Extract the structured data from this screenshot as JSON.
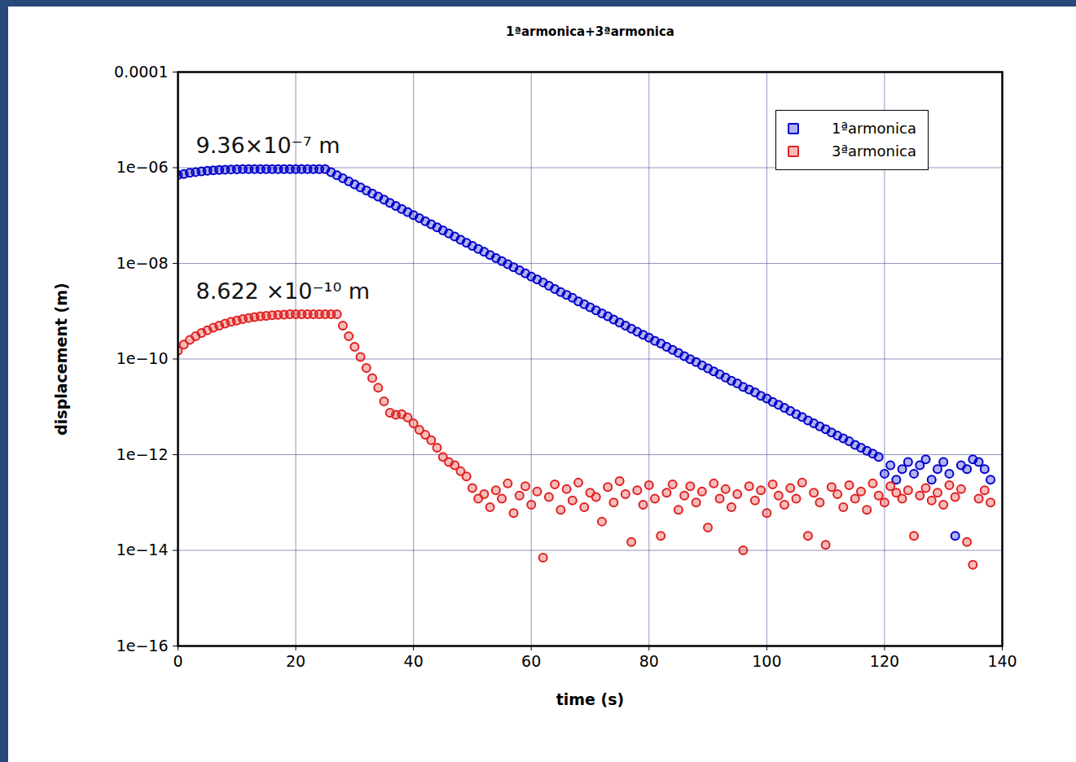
{
  "chart_data": {
    "type": "scatter",
    "title": "1ªarmonica+3ªarmonica",
    "x_label": "time (s)",
    "y_label": "displacement (m)",
    "log": "y",
    "grid": true,
    "legend": "top-right",
    "marker": "circle",
    "xlim": [
      0,
      140
    ],
    "xticks": [
      0,
      20,
      40,
      60,
      80,
      100,
      120,
      140
    ],
    "ylim": [
      1e-16,
      0.0001
    ],
    "yticks": [
      {
        "value": 0.0001,
        "label": "0.0001"
      },
      {
        "value": 1e-06,
        "label": "1e−06"
      },
      {
        "value": 1e-08,
        "label": "1e−08"
      },
      {
        "value": 1e-10,
        "label": "1e−10"
      },
      {
        "value": 1e-12,
        "label": "1e−12"
      },
      {
        "value": 1e-14,
        "label": "1e−14"
      },
      {
        "value": 1e-16,
        "label": "1e−16"
      }
    ],
    "annotations": [
      "9.36×10⁻⁷ m",
      "8.622 ×10⁻¹⁰ m"
    ],
    "x": [
      0,
      1,
      2,
      3,
      4,
      5,
      6,
      7,
      8,
      9,
      10,
      11,
      12,
      13,
      14,
      15,
      16,
      17,
      18,
      19,
      20,
      21,
      22,
      23,
      24,
      25,
      26,
      27,
      28,
      29,
      30,
      31,
      32,
      33,
      34,
      35,
      36,
      37,
      38,
      39,
      40,
      41,
      42,
      43,
      44,
      45,
      46,
      47,
      48,
      49,
      50,
      51,
      52,
      53,
      54,
      55,
      56,
      57,
      58,
      59,
      60,
      61,
      62,
      63,
      64,
      65,
      66,
      67,
      68,
      69,
      70,
      71,
      72,
      73,
      74,
      75,
      76,
      77,
      78,
      79,
      80,
      81,
      82,
      83,
      84,
      85,
      86,
      87,
      88,
      89,
      90,
      91,
      92,
      93,
      94,
      95,
      96,
      97,
      98,
      99,
      100,
      101,
      102,
      103,
      104,
      105,
      106,
      107,
      108,
      109,
      110,
      111,
      112,
      113,
      114,
      115,
      116,
      117,
      118,
      119,
      120,
      121,
      122,
      123,
      124,
      125,
      126,
      127,
      128,
      129,
      130,
      131,
      132,
      133,
      134,
      135,
      136,
      137,
      138
    ],
    "series": [
      {
        "name": "1ªarmonica",
        "color": "#0000cc",
        "values": [
          7e-07,
          7.4e-07,
          7.8e-07,
          8.1e-07,
          8.4e-07,
          8.6e-07,
          8.8e-07,
          8.95e-07,
          9.1e-07,
          9.2e-07,
          9.28e-07,
          9.36e-07,
          9.36e-07,
          9.36e-07,
          9.36e-07,
          9.36e-07,
          9.36e-07,
          9.36e-07,
          9.36e-07,
          9.36e-07,
          9.36e-07,
          9.36e-07,
          9.36e-07,
          9.36e-07,
          9.36e-07,
          9.36e-07,
          8.07e-07,
          6.97e-07,
          6.01e-07,
          5.18e-07,
          4.47e-07,
          3.86e-07,
          3.33e-07,
          2.87e-07,
          2.48e-07,
          2.14e-07,
          1.84e-07,
          1.59e-07,
          1.37e-07,
          1.18e-07,
          1.02e-07,
          8.81e-08,
          7.6e-08,
          6.56e-08,
          5.66e-08,
          4.88e-08,
          4.21e-08,
          3.63e-08,
          3.13e-08,
          2.7e-08,
          2.33e-08,
          2.01e-08,
          1.74e-08,
          1.5e-08,
          1.29e-08,
          1.11e-08,
          9.6e-09,
          8.3e-09,
          7.2e-09,
          6.2e-09,
          5.3e-09,
          4.6e-09,
          4e-09,
          3.4e-09,
          2.9e-09,
          2.5e-09,
          2.2e-09,
          1.9e-09,
          1.6e-09,
          1.4e-09,
          1.2e-09,
          1.04e-09,
          9e-10,
          7.8e-10,
          6.7e-10,
          5.8e-10,
          5e-10,
          4.3e-10,
          3.7e-10,
          3.2e-10,
          2.8e-10,
          2.4e-10,
          2.1e-10,
          1.8e-10,
          1.55e-10,
          1.34e-10,
          1.15e-10,
          9.9e-11,
          8.6e-11,
          7.4e-11,
          6.4e-11,
          5.5e-11,
          4.8e-11,
          4.1e-11,
          3.5e-11,
          3.1e-11,
          2.6e-11,
          2.3e-11,
          2e-11,
          1.7e-11,
          1.5e-11,
          1.27e-11,
          1.1e-11,
          9.5e-12,
          8.2e-12,
          7e-12,
          6.1e-12,
          5.2e-12,
          4.5e-12,
          3.9e-12,
          3.4e-12,
          2.9e-12,
          2.5e-12,
          2.2e-12,
          1.9e-12,
          1.6e-12,
          1.4e-12,
          1.2e-12,
          1.05e-12,
          9e-13,
          4e-13,
          6e-13,
          3e-13,
          5e-13,
          7e-13,
          4e-13,
          6e-13,
          8e-13,
          3e-13,
          5e-13,
          7e-13,
          4e-13,
          2e-14,
          6e-13,
          5e-13,
          8e-13,
          7e-13,
          5e-13,
          3e-13
        ]
      },
      {
        "name": "3ªarmonica",
        "color": "#e02020",
        "values": [
          1.5e-10,
          2e-10,
          2.5e-10,
          3e-10,
          3.5e-10,
          4e-10,
          4.5e-10,
          5e-10,
          5.5e-10,
          6e-10,
          6.4e-10,
          6.8e-10,
          7.2e-10,
          7.5e-10,
          7.8e-10,
          8e-10,
          8.2e-10,
          8.4e-10,
          8.5e-10,
          8.6e-10,
          8.622e-10,
          8.622e-10,
          8.622e-10,
          8.622e-10,
          8.622e-10,
          8.622e-10,
          8.622e-10,
          8.622e-10,
          5e-10,
          3e-10,
          1.8e-10,
          1.1e-10,
          6.5e-11,
          4e-11,
          2.5e-11,
          1.3e-11,
          7.5e-12,
          6.8e-12,
          7e-12,
          6e-12,
          4.5e-12,
          3.3e-12,
          2.6e-12,
          2e-12,
          1.4e-12,
          9e-13,
          7e-13,
          6e-13,
          4.5e-13,
          3.5e-13,
          2e-13,
          1.2e-13,
          1.5e-13,
          8e-14,
          1.8e-13,
          1.2e-13,
          2.5e-13,
          6e-14,
          1.4e-13,
          2.2e-13,
          9e-14,
          1.7e-13,
          7e-15,
          1.3e-13,
          2.4e-13,
          7e-14,
          1.9e-13,
          1.1e-13,
          2.6e-13,
          8e-14,
          1.6e-13,
          1.3e-13,
          4e-14,
          2.1e-13,
          1e-13,
          2.8e-13,
          1.5e-13,
          1.5e-14,
          1.8e-13,
          9e-14,
          2.3e-13,
          1.2e-13,
          2e-14,
          1.6e-13,
          2.4e-13,
          7e-14,
          1.4e-13,
          2.2e-13,
          1e-13,
          1.7e-13,
          3e-14,
          2.5e-13,
          1.2e-13,
          1.9e-13,
          8e-14,
          1.5e-13,
          1e-14,
          2.2e-13,
          1.1e-13,
          1.8e-13,
          6e-14,
          2.4e-13,
          1.4e-13,
          9e-14,
          2e-13,
          1.2e-13,
          2.6e-13,
          2e-14,
          1.6e-13,
          1e-13,
          1.3e-14,
          2.1e-13,
          1.5e-13,
          8e-14,
          2.3e-13,
          1.2e-13,
          1.7e-13,
          7e-14,
          2.5e-13,
          1.4e-13,
          1e-13,
          2.2e-13,
          1.6e-13,
          1.2e-13,
          1.8e-13,
          2e-14,
          1.4e-13,
          2e-13,
          1.1e-13,
          1.6e-13,
          9e-14,
          2.3e-13,
          1.3e-13,
          1.9e-13,
          1.5e-14,
          5e-15,
          1.2e-13,
          1.8e-13,
          1e-13
        ]
      }
    ]
  }
}
